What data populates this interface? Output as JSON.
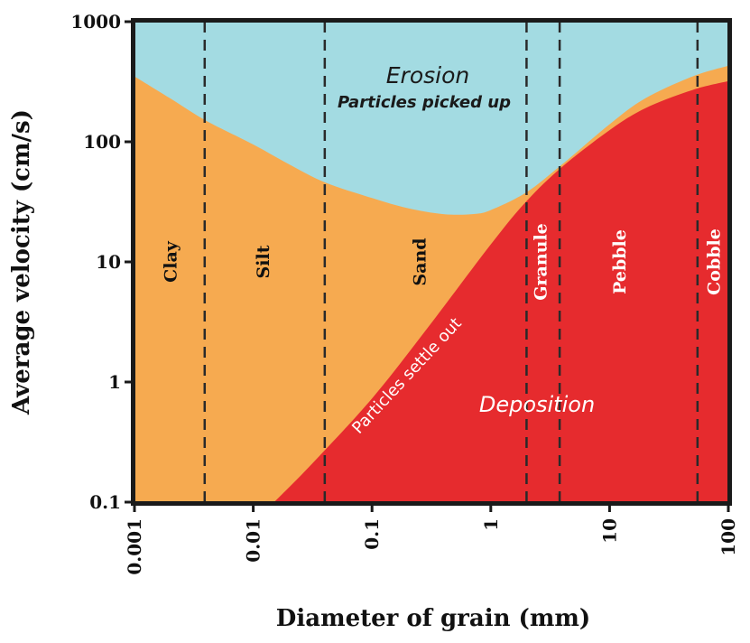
{
  "chart_data": {
    "type": "area",
    "xlabel": "Diameter of grain (mm)",
    "ylabel": "Average velocity (cm/s)",
    "x_scale": "log",
    "y_scale": "log",
    "xlim": [
      0.001,
      100
    ],
    "ylim": [
      0.1,
      1000
    ],
    "x_ticks": [
      "0.001",
      "0.01",
      "0.1",
      "1",
      "10",
      "100"
    ],
    "y_ticks": [
      "0.1",
      "1",
      "10",
      "100",
      "1000"
    ],
    "colors": {
      "erosion": "#a3dbe2",
      "transport": "#f6aa50",
      "deposition": "#e62b2e"
    },
    "erosion_curve": {
      "x": [
        0.001,
        0.002,
        0.004,
        0.01,
        0.02,
        0.04,
        0.1,
        0.2,
        0.4,
        0.7,
        1,
        2,
        4,
        10,
        20,
        50,
        100
      ],
      "y": [
        350,
        230,
        150,
        95,
        65,
        46,
        34,
        28,
        25,
        25,
        27,
        38,
        65,
        140,
        230,
        350,
        430
      ]
    },
    "settling_curve": {
      "x": [
        0.015,
        0.03,
        0.1,
        0.3,
        1,
        2,
        4,
        10,
        20,
        50,
        100
      ],
      "y": [
        0.1,
        0.2,
        0.73,
        2.9,
        14,
        32,
        62,
        125,
        190,
        270,
        320
      ]
    },
    "boundaries": [
      {
        "x": 0.0039
      },
      {
        "x": 0.04
      },
      {
        "x": 2
      },
      {
        "x": 3.8
      },
      {
        "x": 55
      }
    ],
    "grain_classes": [
      {
        "label": "Clay",
        "x": 0.002,
        "y": 10,
        "color": "#111111"
      },
      {
        "label": "Silt",
        "x": 0.012,
        "y": 10,
        "color": "#111111"
      },
      {
        "label": "Sand",
        "x": 0.25,
        "y": 10,
        "color": "#111111"
      },
      {
        "label": "Granule",
        "x": 2.6,
        "y": 10,
        "color": "#ffffff"
      },
      {
        "label": "Pebble",
        "x": 12,
        "y": 10,
        "color": "#ffffff"
      },
      {
        "label": "Cobble",
        "x": 75,
        "y": 10,
        "color": "#ffffff"
      }
    ],
    "annotations": {
      "erosion_title": "Erosion",
      "erosion_subtitle": "Particles picked up",
      "deposition_title": "Deposition",
      "settle_label": "Particles settle out"
    }
  }
}
